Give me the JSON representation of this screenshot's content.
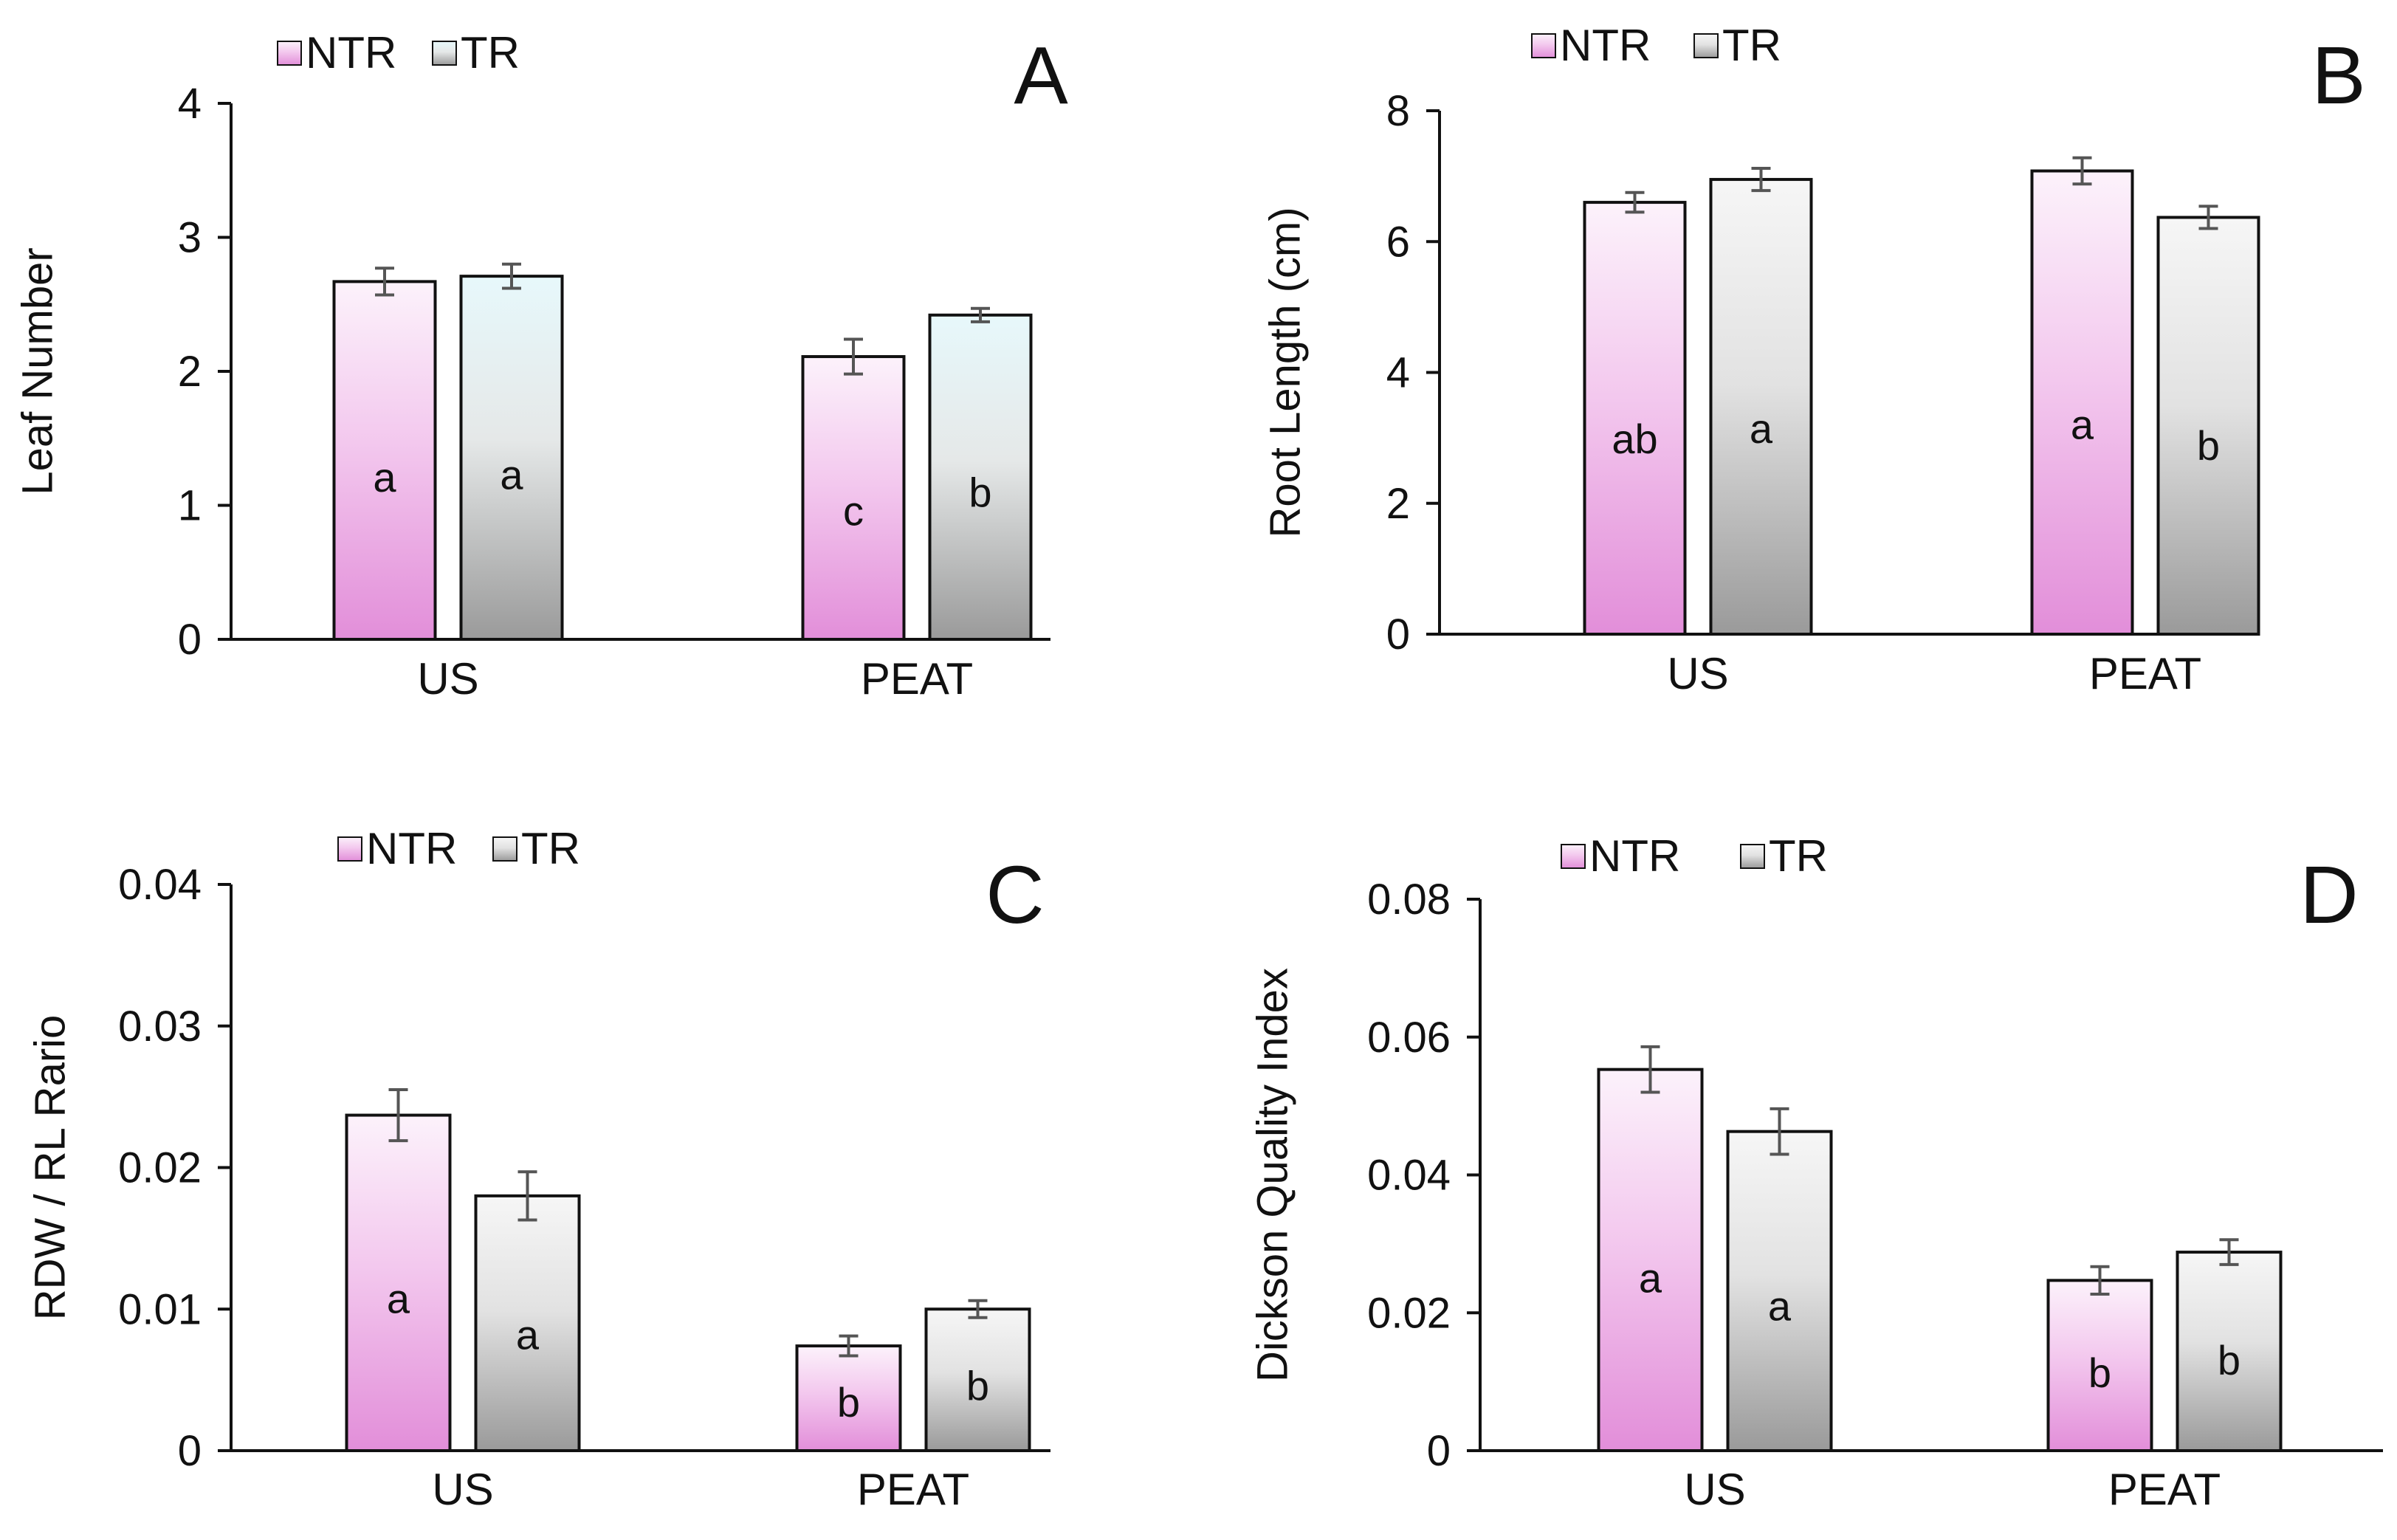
{
  "legend_labels": {
    "ntr": "NTR",
    "tr": "TR"
  },
  "colors": {
    "ntr_top": "#fcf2fb",
    "ntr_bottom": "#e28ed9",
    "tr_top": "#f6f6f6",
    "tr_bottom": "#9a9a9a",
    "tr_teal_top": "#e7f8fb",
    "axis": "#111111",
    "error_bar": "#555555"
  },
  "chart_data": [
    {
      "panel": "A",
      "type": "bar",
      "ylabel": "Leaf Number",
      "categories": [
        "US",
        "PEAT"
      ],
      "ylim": [
        0,
        4
      ],
      "yticks": [
        0,
        1,
        2,
        3,
        4
      ],
      "ytick_labels": [
        "0",
        "1",
        "2",
        "3",
        "4"
      ],
      "series": [
        {
          "name": "NTR",
          "values": [
            2.67,
            2.11
          ],
          "errors": [
            0.1,
            0.13
          ],
          "letters": [
            "a",
            "c"
          ]
        },
        {
          "name": "TR",
          "values": [
            2.71,
            2.42
          ],
          "errors": [
            0.09,
            0.05
          ],
          "letters": [
            "a",
            "b"
          ]
        }
      ]
    },
    {
      "panel": "B",
      "type": "bar",
      "ylabel": "Root Length (cm)",
      "categories": [
        "US",
        "PEAT"
      ],
      "ylim": [
        0,
        8
      ],
      "yticks": [
        0,
        2,
        4,
        6,
        8
      ],
      "ytick_labels": [
        "0",
        "2",
        "4",
        "6",
        "8"
      ],
      "series": [
        {
          "name": "NTR",
          "values": [
            6.6,
            7.08
          ],
          "errors": [
            0.15,
            0.2
          ],
          "letters": [
            "ab",
            "a"
          ]
        },
        {
          "name": "TR",
          "values": [
            6.95,
            6.37
          ],
          "errors": [
            0.17,
            0.17
          ],
          "letters": [
            "a",
            "b"
          ]
        }
      ]
    },
    {
      "panel": "C",
      "type": "bar",
      "ylabel": "RDW / RL Rario",
      "categories": [
        "US",
        "PEAT"
      ],
      "ylim": [
        0,
        0.04
      ],
      "yticks": [
        0,
        0.01,
        0.02,
        0.03,
        0.04
      ],
      "ytick_labels": [
        "0",
        "0.01",
        "0.02",
        "0.03",
        "0.04"
      ],
      "series": [
        {
          "name": "NTR",
          "values": [
            0.0237,
            0.0074
          ],
          "errors": [
            0.0018,
            0.0007
          ],
          "letters": [
            "a",
            "b"
          ]
        },
        {
          "name": "TR",
          "values": [
            0.018,
            0.01
          ],
          "errors": [
            0.0017,
            0.0006
          ],
          "letters": [
            "a",
            "b"
          ]
        }
      ]
    },
    {
      "panel": "D",
      "type": "bar",
      "ylabel": "Dickson Quality Index",
      "categories": [
        "US",
        "PEAT"
      ],
      "ylim": [
        0,
        0.08
      ],
      "yticks": [
        0,
        0.02,
        0.04,
        0.06,
        0.08
      ],
      "ytick_labels": [
        "0",
        "0.02",
        "0.04",
        "0.06",
        "0.08"
      ],
      "series": [
        {
          "name": "NTR",
          "values": [
            0.0553,
            0.0247
          ],
          "errors": [
            0.0033,
            0.002
          ],
          "letters": [
            "a",
            "b"
          ]
        },
        {
          "name": "TR",
          "values": [
            0.0463,
            0.0288
          ],
          "errors": [
            0.0033,
            0.0018
          ],
          "letters": [
            "a",
            "b"
          ]
        }
      ]
    }
  ]
}
